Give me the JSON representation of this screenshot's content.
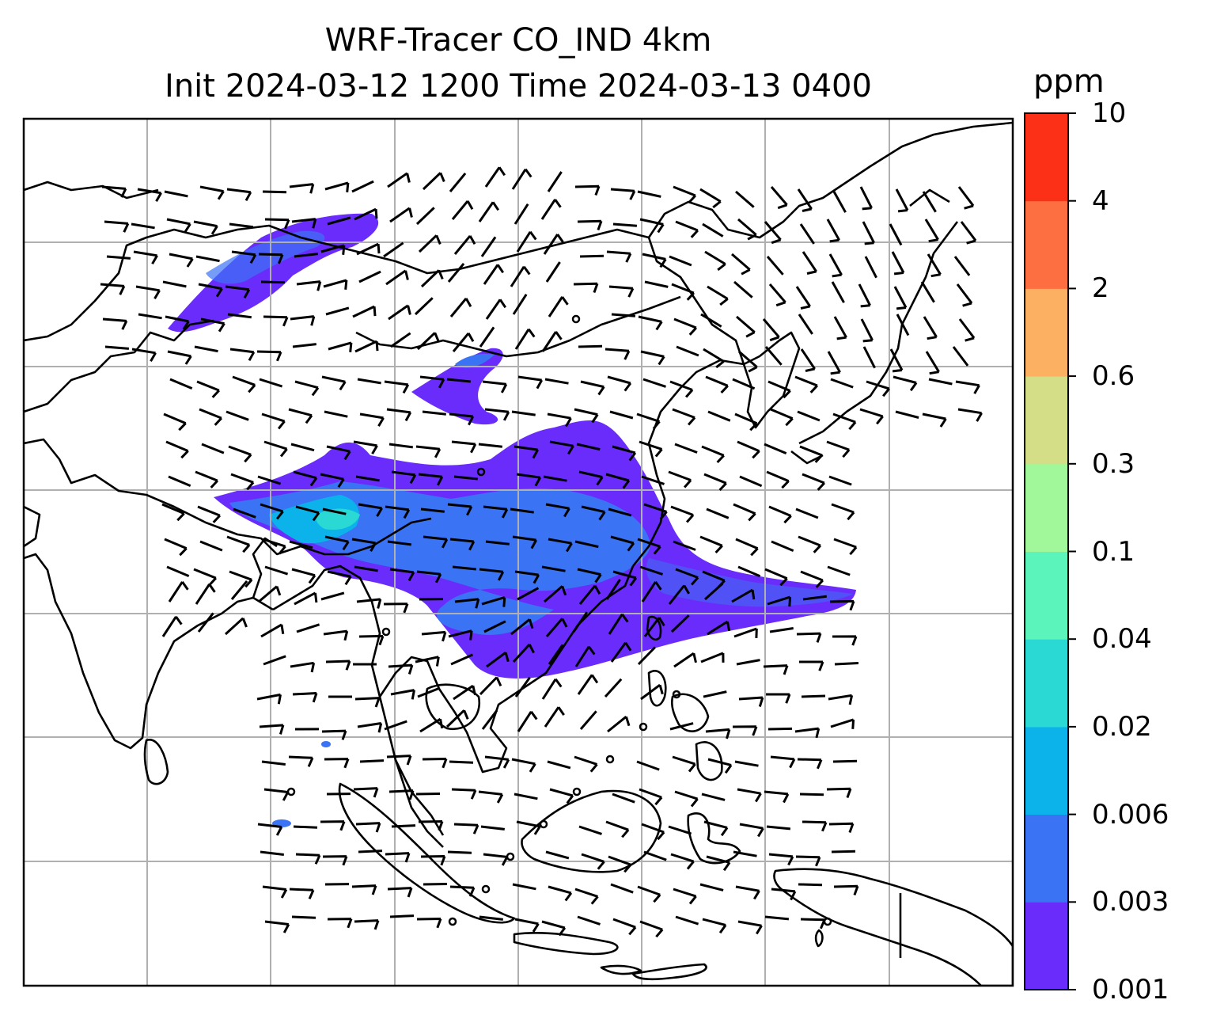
{
  "title_line1": "WRF-Tracer CO_IND 4km",
  "title_line2": "Init 2024-03-12 1200 Time 2024-03-13 0400",
  "colorbar": {
    "unit": "ppm",
    "levels": [
      "0.001",
      "0.003",
      "0.006",
      "0.02",
      "0.04",
      "0.1",
      "0.3",
      "0.6",
      "2",
      "4",
      "10"
    ],
    "colors": [
      "#6a2cfb",
      "#3a73f3",
      "#0cb3ea",
      "#2ad9d3",
      "#5bf5bb",
      "#a1f89a",
      "#d3de87",
      "#fbb062",
      "#fd6f40",
      "#fc2f17"
    ]
  },
  "map_colors": {
    "coastline": "#000000",
    "gridline": "#b0b0b0",
    "wind_barb": "#000000"
  }
}
